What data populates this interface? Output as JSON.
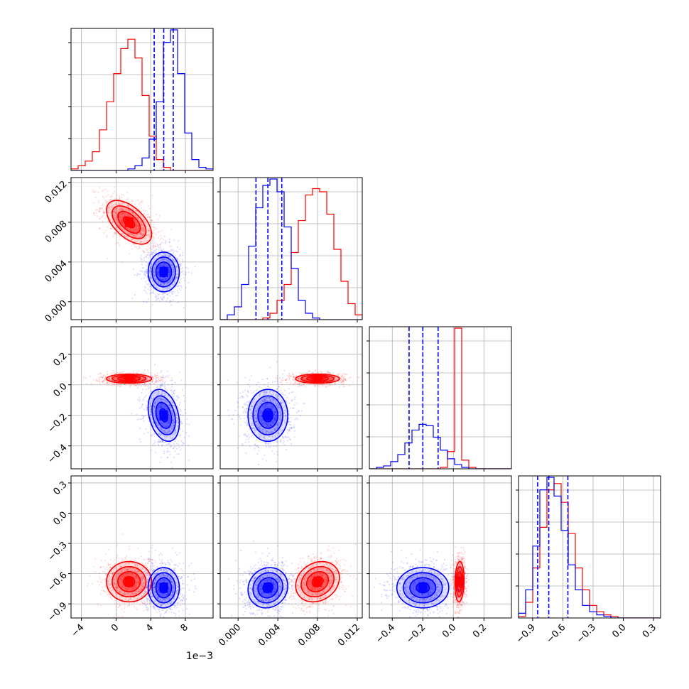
{
  "colors": {
    "red": "#ff0000",
    "blue": "#0000ff",
    "grid": "#b0b0b0",
    "axis": "#000000"
  },
  "chart_data": {
    "type": "corner",
    "title": "",
    "grid": true,
    "series": [
      {
        "color": "#ff0000",
        "mean": [
          0.0015,
          0.008,
          0.04,
          -0.68
        ],
        "std": [
          0.0013,
          0.0011,
          0.015,
          0.1
        ],
        "corr": {
          "1-0": -0.55,
          "2-0": 0.0,
          "2-1": 0.0,
          "3-0": 0.0,
          "3-1": 0.2,
          "3-2": 0.1
        }
      },
      {
        "color": "#0000ff",
        "mean": [
          0.0055,
          0.003,
          -0.2,
          -0.74
        ],
        "std": [
          0.0009,
          0.001,
          0.085,
          0.1
        ],
        "corr": {
          "1-0": 0.0,
          "2-0": -0.3,
          "2-1": 0.0,
          "3-0": 0.0,
          "3-1": 0.1,
          "3-2": 0.0
        },
        "quantiles": [
          [
            0.0044,
            0.0055,
            0.0066
          ],
          [
            0.0018,
            0.003,
            0.0044
          ],
          [
            -0.29,
            -0.2,
            -0.1
          ],
          [
            -0.85,
            -0.74,
            -0.55
          ]
        ]
      }
    ],
    "params": [
      {
        "range": [
          -0.0052,
          0.0112
        ],
        "ticks": [
          -0.004,
          0.0,
          0.004,
          0.008
        ],
        "tick_labels": [
          "−4",
          "0",
          "4",
          "8"
        ],
        "offset_label": "1e−3"
      },
      {
        "range": [
          -0.0018,
          0.0125
        ],
        "ticks": [
          0.0,
          0.004,
          0.008,
          0.012
        ],
        "tick_labels": [
          "0.000",
          "0.004",
          "0.008",
          "0.012"
        ]
      },
      {
        "range": [
          -0.55,
          0.38
        ],
        "ticks": [
          -0.4,
          -0.2,
          0.0,
          0.2
        ],
        "tick_labels": [
          "−0.4",
          "−0.2",
          "0.0",
          "0.2"
        ]
      },
      {
        "range": [
          -1.04,
          0.37
        ],
        "ticks": [
          -0.9,
          -0.6,
          -0.3,
          0.0,
          0.3
        ],
        "tick_labels": [
          "−0.9",
          "−0.6",
          "−0.3",
          "0.0",
          "0.3"
        ]
      }
    ],
    "histograms": [
      {
        "param": 0,
        "bin_edges": [
          -0.0052,
          -0.00438,
          -0.00356,
          -0.00274,
          -0.00192,
          -0.0011,
          -0.00028,
          0.00054,
          0.00136,
          0.00218,
          0.003,
          0.00382,
          0.00464,
          0.00546,
          0.00628,
          0.0071,
          0.00792,
          0.00874,
          0.00956,
          0.01038,
          0.0112
        ],
        "counts": {
          "red": [
            1,
            3,
            6,
            12,
            26,
            44,
            62,
            78,
            84,
            72,
            48,
            22,
            7,
            2,
            0,
            0,
            0,
            0,
            0,
            0
          ],
          "blue": [
            0,
            0,
            0,
            0,
            0,
            0,
            0,
            0,
            1,
            3,
            8,
            20,
            44,
            82,
            90,
            62,
            24,
            7,
            2,
            1
          ]
        }
      },
      {
        "param": 1,
        "bin_edges": [
          -0.0018,
          -0.001085,
          -0.00037,
          0.000345,
          0.00106,
          0.001775,
          0.00249,
          0.003205,
          0.00392,
          0.004635,
          0.00535,
          0.006065,
          0.00678,
          0.007495,
          0.00821,
          0.008925,
          0.00964,
          0.010355,
          0.01107,
          0.011785,
          0.0125
        ],
        "counts": {
          "red": [
            0,
            0,
            0,
            0,
            0,
            0,
            1,
            4,
            12,
            22,
            42,
            62,
            78,
            82,
            80,
            66,
            44,
            24,
            10,
            3
          ],
          "blue": [
            0,
            3,
            8,
            22,
            46,
            70,
            84,
            88,
            80,
            58,
            32,
            12,
            4,
            1,
            0,
            0,
            0,
            0,
            0,
            0
          ]
        }
      },
      {
        "param": 2,
        "bin_edges": [
          -0.55,
          -0.5035,
          -0.457,
          -0.4105,
          -0.364,
          -0.3175,
          -0.271,
          -0.2245,
          -0.178,
          -0.1315,
          -0.085,
          -0.0385,
          0.008,
          0.0545,
          0.101,
          0.1475,
          0.194,
          0.2405,
          0.287,
          0.3335,
          0.38
        ],
        "counts": {
          "red": [
            0,
            0,
            0,
            0,
            0,
            0,
            0,
            0,
            0,
            0,
            1,
            12,
            98,
            6,
            1,
            0,
            0,
            0,
            0,
            0
          ],
          "blue": [
            0,
            1,
            2,
            5,
            10,
            18,
            27,
            31,
            30,
            22,
            13,
            7,
            3,
            1,
            0,
            0,
            0,
            0,
            0,
            0
          ]
        }
      },
      {
        "param": 3,
        "bin_edges": [
          -1.04,
          -0.9695,
          -0.899,
          -0.8285,
          -0.758,
          -0.6875,
          -0.617,
          -0.5465,
          -0.476,
          -0.4055,
          -0.335,
          -0.2645,
          -0.194,
          -0.1235,
          -0.053,
          0.0175,
          0.088,
          0.1585,
          0.229,
          0.2995,
          0.37
        ],
        "counts": {
          "red": [
            1,
            10,
            32,
            58,
            82,
            86,
            74,
            54,
            32,
            18,
            8,
            4,
            2,
            1,
            0,
            0,
            0,
            0,
            0,
            0
          ],
          "blue": [
            3,
            18,
            46,
            82,
            90,
            78,
            56,
            34,
            18,
            8,
            4,
            2,
            1,
            0,
            0,
            0,
            0,
            0,
            0,
            0
          ]
        }
      }
    ]
  }
}
